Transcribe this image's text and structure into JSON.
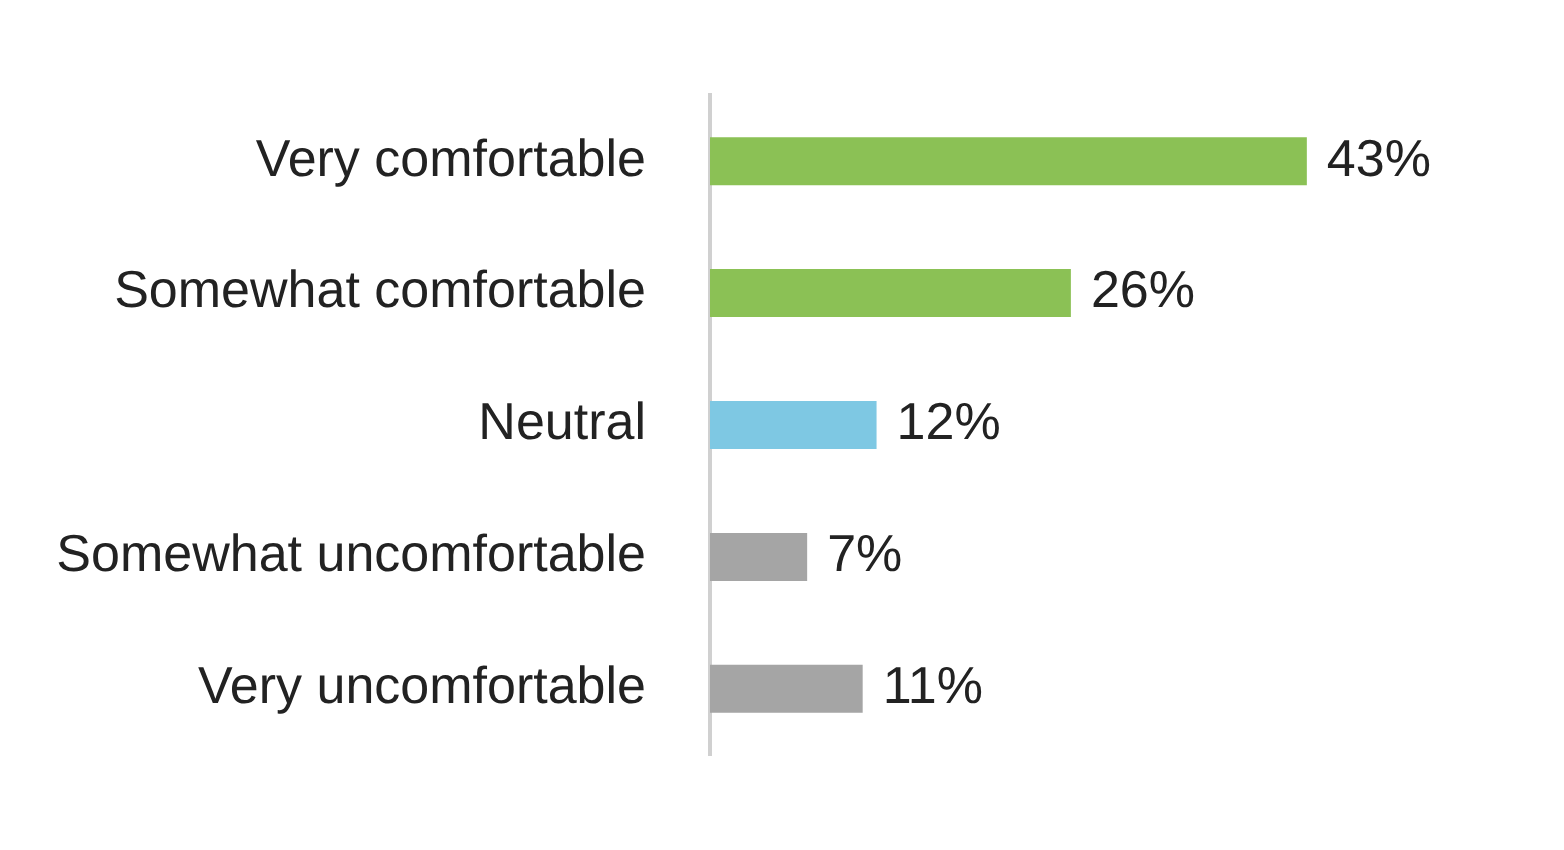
{
  "chart_data": {
    "type": "bar",
    "orientation": "horizontal",
    "categories": [
      "Very comfortable",
      "Somewhat comfortable",
      "Neutral",
      "Somewhat uncomfortable",
      "Very uncomfortable"
    ],
    "values": [
      43,
      26,
      12,
      7,
      11
    ],
    "colors": [
      "#8bc155",
      "#8bc155",
      "#7ec8e3",
      "#a5a5a5",
      "#a5a5a5"
    ],
    "value_labels": [
      "43%",
      "26%",
      "12%",
      "7%",
      "11%"
    ],
    "legend": false
  }
}
